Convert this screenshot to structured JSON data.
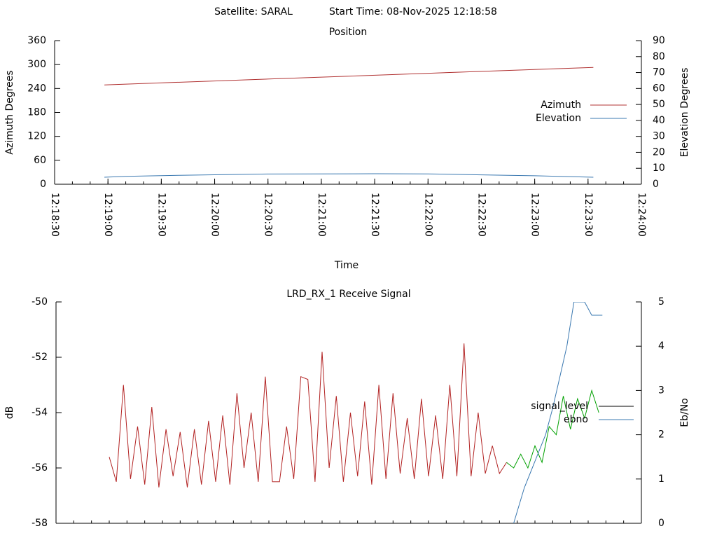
{
  "title": "Satellite: SARAL",
  "start_time": "Start Time: 08-Nov-2025 12:18:58",
  "chart_data": [
    {
      "type": "line",
      "title": "Position",
      "xlabel": "Time",
      "ylabel": "Azimuth Degrees",
      "y2label": "Elevation Degrees",
      "xlim": [
        "12:18:30",
        "12:24:00"
      ],
      "xticks": [
        "12:18:30",
        "12:19:00",
        "12:19:30",
        "12:20:00",
        "12:20:30",
        "12:21:00",
        "12:21:30",
        "12:22:00",
        "12:22:30",
        "12:23:00",
        "12:23:30",
        "12:24:00"
      ],
      "ylim": [
        0,
        360
      ],
      "yticks": [
        0,
        60,
        120,
        180,
        240,
        300,
        360
      ],
      "y2lim": [
        0,
        90
      ],
      "y2ticks": [
        0,
        10,
        20,
        30,
        40,
        50,
        60,
        70,
        80,
        90
      ],
      "legend": "right",
      "series": [
        {
          "name": "Azimuth",
          "color": "#b03030",
          "x": [
            "12:18:58",
            "12:23:33"
          ],
          "values": [
            249,
            293
          ]
        },
        {
          "name": "Elevation",
          "color": "#3a78b0",
          "axis": "y2",
          "x": [
            "12:18:58",
            "12:19:10",
            "12:19:40",
            "12:20:30",
            "12:21:30",
            "12:22:00",
            "12:22:30",
            "12:23:00",
            "12:23:33"
          ],
          "values": [
            4.4,
            4.9,
            5.6,
            6.4,
            6.6,
            6.5,
            5.9,
            5.3,
            4.4
          ]
        }
      ]
    },
    {
      "type": "line",
      "title": "LRD_RX_1 Receive Signal",
      "ylabel": "dB",
      "y2label": "Eb/No",
      "xlim": [
        "12:18:30",
        "12:24:00"
      ],
      "ylim": [
        -58,
        -50
      ],
      "yticks": [
        -58,
        -56,
        -54,
        -52,
        -50
      ],
      "y2lim": [
        0,
        5
      ],
      "y2ticks": [
        0,
        1,
        2,
        3,
        4,
        5
      ],
      "legend": "right",
      "series": [
        {
          "name": "signal_level",
          "color": "#000000",
          "line_colors": [
            {
              "from": "12:18:30",
              "color": "#b22222"
            },
            {
              "from": "12:22:48",
              "color": "#00a000"
            }
          ],
          "x": [
            "12:19:00",
            "12:19:04",
            "12:19:08",
            "12:19:12",
            "12:19:16",
            "12:19:20",
            "12:19:24",
            "12:19:28",
            "12:19:32",
            "12:19:36",
            "12:19:40",
            "12:19:44",
            "12:19:48",
            "12:19:52",
            "12:19:56",
            "12:20:00",
            "12:20:04",
            "12:20:08",
            "12:20:12",
            "12:20:16",
            "12:20:20",
            "12:20:24",
            "12:20:28",
            "12:20:32",
            "12:20:36",
            "12:20:40",
            "12:20:44",
            "12:20:48",
            "12:20:52",
            "12:20:56",
            "12:21:00",
            "12:21:04",
            "12:21:08",
            "12:21:12",
            "12:21:16",
            "12:21:20",
            "12:21:24",
            "12:21:28",
            "12:21:32",
            "12:21:36",
            "12:21:40",
            "12:21:44",
            "12:21:48",
            "12:21:52",
            "12:21:56",
            "12:22:00",
            "12:22:04",
            "12:22:08",
            "12:22:12",
            "12:22:16",
            "12:22:20",
            "12:22:24",
            "12:22:28",
            "12:22:32",
            "12:22:36",
            "12:22:40",
            "12:22:44",
            "12:22:48",
            "12:22:52",
            "12:22:56",
            "12:23:00",
            "12:23:04",
            "12:23:08",
            "12:23:12",
            "12:23:16",
            "12:23:20",
            "12:23:24",
            "12:23:28",
            "12:23:32",
            "12:23:36"
          ],
          "values": [
            -55.6,
            -56.5,
            -53.0,
            -56.4,
            -54.5,
            -56.6,
            -53.8,
            -56.7,
            -54.6,
            -56.3,
            -54.7,
            -56.7,
            -54.6,
            -56.6,
            -54.3,
            -56.5,
            -54.1,
            -56.6,
            -53.3,
            -56.0,
            -54.0,
            -56.5,
            -52.7,
            -56.5,
            -56.5,
            -54.5,
            -56.4,
            -52.7,
            -52.8,
            -56.5,
            -51.8,
            -56.0,
            -53.4,
            -56.5,
            -54.0,
            -56.3,
            -53.6,
            -56.6,
            -53.0,
            -56.4,
            -53.3,
            -56.2,
            -54.2,
            -56.4,
            -53.5,
            -56.3,
            -54.1,
            -56.4,
            -53.0,
            -56.3,
            -51.5,
            -56.3,
            -54.0,
            -56.2,
            -55.2,
            -56.2,
            -55.8,
            -56.0,
            -55.5,
            -56.0,
            -55.2,
            -55.8,
            -54.5,
            -54.8,
            -53.4,
            -54.6,
            -53.5,
            -54.2,
            -53.2,
            -54.0
          ]
        },
        {
          "name": "ebno",
          "color": "#3a78b0",
          "axis": "y2",
          "x": [
            "12:22:48",
            "12:22:54",
            "12:23:00",
            "12:23:06",
            "12:23:10",
            "12:23:14",
            "12:23:18",
            "12:23:22",
            "12:23:28",
            "12:23:32",
            "12:23:38"
          ],
          "values": [
            0,
            0.8,
            1.4,
            2.0,
            2.6,
            3.3,
            4.0,
            5.0,
            5.0,
            4.7,
            4.7
          ]
        }
      ]
    }
  ]
}
